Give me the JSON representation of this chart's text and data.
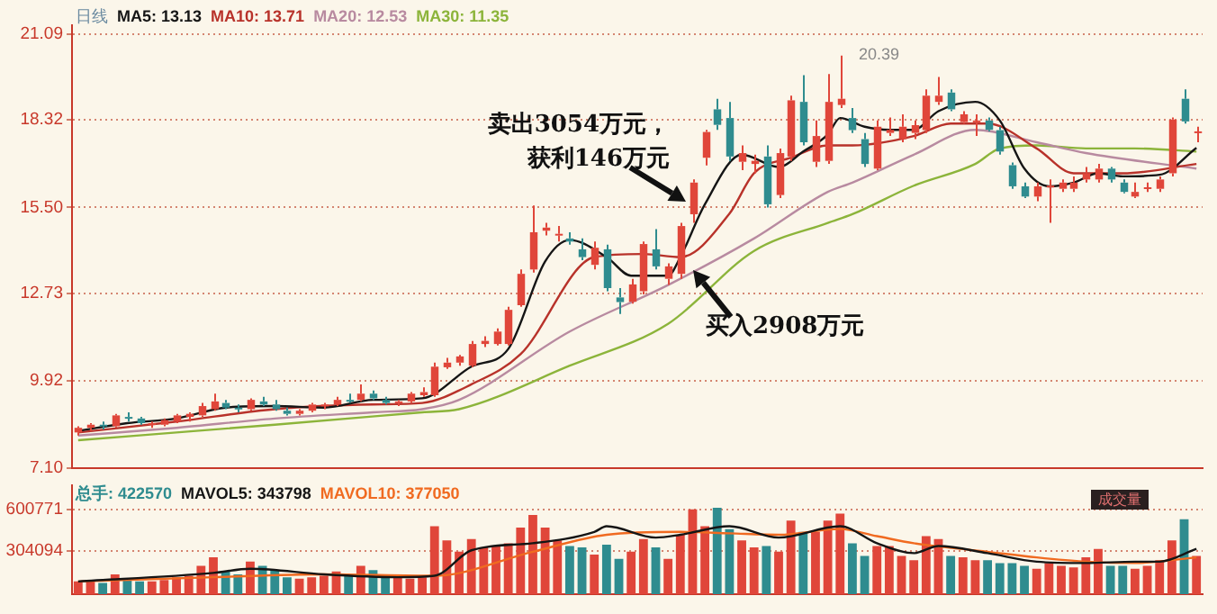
{
  "chart_data": [
    {
      "type": "candlestick",
      "title": "日线",
      "legend": "top left",
      "grid": "y",
      "tick_labels": "y",
      "categories": [
        null,
        null,
        null,
        null,
        null,
        null,
        null,
        null,
        null,
        null,
        null,
        null,
        null,
        null,
        null,
        null,
        null,
        null,
        null,
        null,
        null,
        null,
        null,
        null,
        null,
        null,
        null,
        null,
        null,
        null,
        null,
        null,
        null,
        null,
        null,
        null,
        null,
        null,
        null,
        null,
        null,
        null,
        null,
        null,
        null,
        null,
        null,
        null,
        null,
        null,
        null,
        null,
        null,
        null,
        null,
        null,
        null,
        null,
        null,
        null,
        null,
        null,
        null,
        null,
        null,
        null,
        null,
        null,
        null,
        null,
        null,
        null,
        null,
        null,
        null,
        null,
        null,
        null,
        null,
        null,
        null,
        null,
        null,
        null,
        null,
        null,
        null,
        null,
        null,
        null,
        null,
        null
      ],
      "ylim": [
        7.1,
        21.37
      ],
      "yticks": [
        {
          "value": 7.1,
          "label": "7.10"
        },
        {
          "value": 9.92,
          "label": "9.92"
        },
        {
          "value": 12.73,
          "label": "12.73"
        },
        {
          "value": 15.5,
          "label": "15.50"
        },
        {
          "value": 18.32,
          "label": "18.32"
        },
        {
          "value": 21.09,
          "label": "21.09"
        }
      ],
      "ohlc": [
        [
          8.25,
          8.45,
          8.15,
          8.4
        ],
        [
          8.4,
          8.55,
          8.3,
          8.5
        ],
        [
          8.5,
          8.6,
          8.35,
          8.45
        ],
        [
          8.45,
          8.85,
          8.4,
          8.8
        ],
        [
          8.75,
          8.9,
          8.6,
          8.7
        ],
        [
          8.7,
          8.75,
          8.5,
          8.55
        ],
        [
          8.5,
          8.6,
          8.4,
          8.55
        ],
        [
          8.5,
          8.7,
          8.45,
          8.65
        ],
        [
          8.6,
          8.85,
          8.55,
          8.8
        ],
        [
          8.75,
          8.9,
          8.6,
          8.85
        ],
        [
          8.8,
          9.2,
          8.75,
          9.1
        ],
        [
          9.0,
          9.5,
          8.95,
          9.25
        ],
        [
          9.2,
          9.3,
          9.0,
          9.05
        ],
        [
          9.05,
          9.15,
          8.9,
          9.0
        ],
        [
          9.0,
          9.35,
          8.95,
          9.3
        ],
        [
          9.25,
          9.4,
          9.1,
          9.15
        ],
        [
          9.15,
          9.3,
          8.95,
          9.0
        ],
        [
          8.95,
          9.05,
          8.8,
          8.85
        ],
        [
          8.85,
          9.0,
          8.8,
          8.95
        ],
        [
          8.95,
          9.2,
          8.9,
          9.15
        ],
        [
          9.1,
          9.2,
          9.0,
          9.15
        ],
        [
          9.15,
          9.4,
          9.1,
          9.3
        ],
        [
          9.3,
          9.5,
          9.2,
          9.25
        ],
        [
          9.3,
          9.8,
          9.25,
          9.5
        ],
        [
          9.5,
          9.6,
          9.3,
          9.35
        ],
        [
          9.3,
          9.4,
          9.15,
          9.2
        ],
        [
          9.2,
          9.3,
          9.1,
          9.25
        ],
        [
          9.25,
          9.55,
          9.2,
          9.5
        ],
        [
          9.45,
          9.7,
          9.4,
          9.55
        ],
        [
          9.45,
          10.5,
          9.4,
          10.37
        ],
        [
          10.35,
          10.65,
          10.3,
          10.5
        ],
        [
          10.5,
          10.75,
          10.4,
          10.7
        ],
        [
          10.4,
          11.2,
          10.35,
          11.1
        ],
        [
          11.1,
          11.35,
          11.0,
          11.2
        ],
        [
          11.1,
          11.6,
          11.05,
          11.5
        ],
        [
          11.1,
          12.3,
          11.05,
          12.2
        ],
        [
          12.35,
          13.5,
          12.3,
          13.36
        ],
        [
          13.5,
          15.56,
          13.4,
          14.7
        ],
        [
          14.75,
          15.0,
          14.6,
          14.85
        ],
        [
          14.6,
          14.9,
          14.4,
          14.65
        ],
        [
          14.5,
          14.7,
          14.3,
          14.4
        ],
        [
          14.15,
          14.5,
          13.8,
          13.9
        ],
        [
          13.65,
          14.4,
          13.5,
          14.2
        ],
        [
          14.15,
          14.3,
          12.8,
          12.9
        ],
        [
          12.6,
          12.9,
          12.07,
          12.45
        ],
        [
          12.46,
          13.2,
          12.4,
          13.02
        ],
        [
          12.8,
          14.4,
          12.7,
          14.32
        ],
        [
          14.15,
          14.8,
          13.5,
          13.6
        ],
        [
          13.2,
          13.7,
          13.0,
          13.6
        ],
        [
          13.36,
          15.0,
          13.2,
          14.9
        ],
        [
          15.28,
          16.4,
          15.0,
          16.3
        ],
        [
          17.1,
          18.0,
          16.85,
          17.93
        ],
        [
          18.66,
          19.0,
          18.0,
          18.16
        ],
        [
          18.38,
          18.9,
          17.0,
          17.14
        ],
        [
          16.97,
          17.5,
          16.7,
          17.25
        ],
        [
          16.9,
          17.2,
          16.6,
          17.0
        ],
        [
          17.14,
          17.5,
          15.5,
          15.6
        ],
        [
          15.9,
          17.4,
          15.8,
          17.25
        ],
        [
          17.14,
          19.1,
          17.0,
          18.95
        ],
        [
          18.9,
          19.76,
          17.5,
          17.6
        ],
        [
          16.97,
          18.3,
          16.8,
          17.8
        ],
        [
          17.0,
          19.8,
          16.9,
          18.9
        ],
        [
          18.8,
          20.39,
          18.7,
          19.0
        ],
        [
          18.38,
          18.7,
          17.9,
          17.99
        ],
        [
          17.7,
          17.9,
          16.8,
          16.9
        ],
        [
          16.75,
          18.3,
          16.7,
          18.1
        ],
        [
          17.9,
          18.4,
          17.8,
          18.0
        ],
        [
          17.7,
          18.5,
          17.6,
          18.1
        ],
        [
          17.9,
          18.3,
          17.7,
          18.15
        ],
        [
          17.99,
          19.3,
          17.9,
          19.1
        ],
        [
          18.9,
          19.7,
          18.8,
          19.1
        ],
        [
          19.2,
          19.3,
          18.6,
          18.66
        ],
        [
          18.25,
          18.6,
          18.2,
          18.5
        ],
        [
          18.3,
          18.5,
          17.8,
          18.3
        ],
        [
          18.3,
          18.4,
          17.95,
          18.0
        ],
        [
          17.99,
          18.1,
          17.2,
          17.3
        ],
        [
          16.86,
          16.95,
          16.1,
          16.18
        ],
        [
          16.18,
          16.3,
          15.8,
          15.85
        ],
        [
          15.85,
          16.3,
          15.7,
          16.18
        ],
        [
          16.2,
          16.4,
          15.0,
          16.2
        ],
        [
          16.1,
          16.4,
          16.0,
          16.3
        ],
        [
          16.1,
          16.5,
          16.0,
          16.3
        ],
        [
          16.4,
          16.8,
          16.3,
          16.6
        ],
        [
          16.4,
          16.9,
          16.3,
          16.75
        ],
        [
          16.75,
          16.8,
          16.3,
          16.4
        ],
        [
          16.3,
          16.4,
          15.95,
          16.0
        ],
        [
          15.85,
          16.3,
          15.8,
          16.0
        ],
        [
          16.1,
          16.3,
          16.0,
          16.15
        ],
        [
          16.1,
          16.5,
          16.0,
          16.4
        ],
        [
          16.6,
          18.4,
          16.5,
          18.33
        ],
        [
          19.0,
          19.3,
          18.2,
          18.27
        ],
        [
          17.93,
          18.1,
          17.6,
          17.95
        ]
      ],
      "colors": [
        "#e0463a",
        "#e0463a",
        "#2f8c8f",
        "#e0463a",
        "#2f8c8f",
        "#2f8c8f",
        "#e0463a",
        "#e0463a",
        "#e0463a",
        "#e0463a",
        "#e0463a",
        "#e0463a",
        "#2f8c8f",
        "#2f8c8f",
        "#e0463a",
        "#2f8c8f",
        "#2f8c8f",
        "#2f8c8f",
        "#e0463a",
        "#e0463a",
        "#e0463a",
        "#e0463a",
        "#2f8c8f",
        "#e0463a",
        "#2f8c8f",
        "#2f8c8f",
        "#e0463a",
        "#e0463a",
        "#e0463a",
        "#e0463a",
        "#e0463a",
        "#e0463a",
        "#e0463a",
        "#e0463a",
        "#e0463a",
        "#e0463a",
        "#e0463a",
        "#e0463a",
        "#e0463a",
        "#e0463a",
        "#2f8c8f",
        "#2f8c8f",
        "#e0463a",
        "#2f8c8f",
        "#2f8c8f",
        "#e0463a",
        "#e0463a",
        "#2f8c8f",
        "#e0463a",
        "#e0463a",
        "#e0463a",
        "#e0463a",
        "#2f8c8f",
        "#2f8c8f",
        "#e0463a",
        "#e0463a",
        "#2f8c8f",
        "#e0463a",
        "#e0463a",
        "#2f8c8f",
        "#e0463a",
        "#e0463a",
        "#e0463a",
        "#2f8c8f",
        "#2f8c8f",
        "#e0463a",
        "#e0463a",
        "#e0463a",
        "#e0463a",
        "#e0463a",
        "#e0463a",
        "#2f8c8f",
        "#e0463a",
        "#e0463a",
        "#2f8c8f",
        "#2f8c8f",
        "#2f8c8f",
        "#2f8c8f",
        "#e0463a",
        "#e0463a",
        "#e0463a",
        "#e0463a",
        "#e0463a",
        "#e0463a",
        "#2f8c8f",
        "#2f8c8f",
        "#e0463a",
        "#e0463a",
        "#e0463a",
        "#e0463a",
        "#2f8c8f",
        "#e0463a"
      ],
      "series": [
        {
          "type": "line",
          "name": "MA5: 13.13",
          "color": "#151515",
          "values": [
            8.3,
            null,
            null,
            null,
            8.55,
            null,
            null,
            null,
            8.7,
            null,
            null,
            null,
            9.05,
            null,
            null,
            null,
            9.1,
            null,
            null,
            null,
            9.05,
            null,
            null,
            null,
            9.3,
            null,
            null,
            null,
            9.35,
            null,
            null,
            null,
            10.37,
            null,
            null,
            10.94,
            null,
            null,
            13.76,
            null,
            14.45,
            null,
            null,
            13.9,
            null,
            13.3,
            null,
            null,
            13.3,
            13.9,
            null,
            15.6,
            null,
            null,
            17.2,
            null,
            null,
            16.8,
            null,
            17.3,
            null,
            17.85,
            18.38,
            null,
            18.1,
            null,
            18.0,
            null,
            18.0,
            null,
            18.6,
            null,
            null,
            18.9,
            null,
            18.3,
            null,
            16.75,
            null,
            16.18,
            null,
            16.3,
            null,
            16.6,
            null,
            16.5,
            null,
            null,
            16.55,
            null,
            null,
            17.42
          ]
        },
        {
          "type": "line",
          "name": "MA10: 13.71",
          "color": "#b8322a",
          "values": [
            8.25,
            null,
            null,
            null,
            null,
            null,
            null,
            null,
            8.6,
            null,
            null,
            null,
            null,
            null,
            null,
            null,
            9.0,
            null,
            null,
            null,
            null,
            null,
            null,
            null,
            9.15,
            null,
            null,
            null,
            9.2,
            null,
            null,
            null,
            9.8,
            null,
            null,
            null,
            10.77,
            null,
            null,
            null,
            null,
            null,
            13.9,
            null,
            null,
            null,
            14.0,
            null,
            null,
            13.9,
            null,
            null,
            null,
            15.3,
            null,
            16.6,
            null,
            null,
            17.1,
            null,
            null,
            17.5,
            null,
            17.5,
            null,
            null,
            null,
            null,
            17.8,
            null,
            null,
            18.2,
            null,
            null,
            18.2,
            null,
            null,
            null,
            17.4,
            null,
            null,
            16.6,
            null,
            null,
            null,
            16.6,
            null,
            null,
            null,
            null,
            null,
            16.9
          ]
        },
        {
          "type": "line",
          "name": "MA20: 12.53",
          "color": "#b88aa0",
          "values": [
            8.15,
            null,
            null,
            null,
            null,
            null,
            null,
            null,
            8.4,
            null,
            null,
            null,
            null,
            null,
            null,
            null,
            8.7,
            null,
            null,
            null,
            null,
            null,
            null,
            null,
            8.9,
            null,
            null,
            null,
            9.0,
            null,
            null,
            9.3,
            null,
            null,
            null,
            null,
            null,
            null,
            null,
            null,
            11.5,
            null,
            null,
            null,
            null,
            null,
            null,
            null,
            13.0,
            null,
            null,
            null,
            null,
            null,
            null,
            14.5,
            null,
            null,
            null,
            null,
            null,
            16.0,
            null,
            16.3,
            null,
            null,
            null,
            null,
            17.2,
            null,
            null,
            null,
            null,
            18.0,
            null,
            null,
            null,
            null,
            17.6,
            null,
            null,
            null,
            17.25,
            null,
            null,
            null,
            null,
            null,
            null,
            null,
            null,
            16.75
          ]
        },
        {
          "type": "line",
          "name": "MA30: 11.35",
          "color": "#8cb43a",
          "values": [
            8.0,
            null,
            null,
            null,
            null,
            null,
            null,
            null,
            null,
            null,
            null,
            null,
            null,
            null,
            null,
            null,
            8.5,
            null,
            null,
            null,
            null,
            null,
            null,
            null,
            null,
            null,
            null,
            null,
            8.9,
            null,
            null,
            9.0,
            null,
            null,
            null,
            null,
            null,
            null,
            null,
            null,
            10.4,
            null,
            null,
            null,
            null,
            null,
            null,
            null,
            11.75,
            null,
            null,
            null,
            null,
            null,
            null,
            14.1,
            null,
            null,
            null,
            null,
            null,
            15.0,
            null,
            15.28,
            null,
            null,
            null,
            null,
            16.2,
            null,
            null,
            null,
            null,
            16.9,
            null,
            17.4,
            null,
            null,
            17.5,
            null,
            null,
            null,
            17.4,
            null,
            null,
            null,
            17.4,
            null,
            null,
            null,
            null,
            17.3
          ]
        }
      ],
      "annotations": [
        "卖出3054万元，获利146万元",
        "买入2908万元",
        "20.39"
      ]
    },
    {
      "type": "bar",
      "legend": "top left",
      "grid": "y",
      "tick_labels": "y",
      "categories": [
        null,
        null,
        null,
        null,
        null,
        null,
        null,
        null,
        null,
        null,
        null,
        null,
        null,
        null,
        null,
        null,
        null,
        null,
        null,
        null,
        null,
        null,
        null,
        null,
        null,
        null,
        null,
        null,
        null,
        null,
        null,
        null,
        null,
        null,
        null,
        null,
        null,
        null,
        null,
        null,
        null,
        null,
        null,
        null,
        null,
        null,
        null,
        null,
        null,
        null,
        null,
        null,
        null,
        null,
        null,
        null,
        null,
        null,
        null,
        null,
        null,
        null,
        null,
        null,
        null,
        null,
        null,
        null,
        null,
        null,
        null,
        null,
        null,
        null,
        null,
        null,
        null,
        null,
        null,
        null,
        null,
        null,
        null,
        null,
        null,
        null,
        null,
        null,
        null,
        null,
        null,
        null
      ],
      "ylim": [
        0,
        767000
      ],
      "yticks": [
        304094,
        600771
      ],
      "series": [
        {
          "type": "bar",
          "name": "总手: 422570",
          "color": "#2f8c8f",
          "colors": [
            "#e0463a",
            "#e0463a",
            "#2f8c8f",
            "#e0463a",
            "#2f8c8f",
            "#2f8c8f",
            "#e0463a",
            "#e0463a",
            "#e0463a",
            "#e0463a",
            "#e0463a",
            "#e0463a",
            "#2f8c8f",
            "#2f8c8f",
            "#e0463a",
            "#2f8c8f",
            "#2f8c8f",
            "#2f8c8f",
            "#e0463a",
            "#e0463a",
            "#e0463a",
            "#e0463a",
            "#2f8c8f",
            "#e0463a",
            "#2f8c8f",
            "#2f8c8f",
            "#e0463a",
            "#e0463a",
            "#e0463a",
            "#e0463a",
            "#e0463a",
            "#e0463a",
            "#e0463a",
            "#e0463a",
            "#e0463a",
            "#e0463a",
            "#e0463a",
            "#e0463a",
            "#e0463a",
            "#e0463a",
            "#2f8c8f",
            "#2f8c8f",
            "#e0463a",
            "#2f8c8f",
            "#2f8c8f",
            "#e0463a",
            "#e0463a",
            "#2f8c8f",
            "#e0463a",
            "#e0463a",
            "#e0463a",
            "#e0463a",
            "#2f8c8f",
            "#2f8c8f",
            "#e0463a",
            "#e0463a",
            "#2f8c8f",
            "#e0463a",
            "#e0463a",
            "#2f8c8f",
            "#e0463a",
            "#e0463a",
            "#e0463a",
            "#2f8c8f",
            "#2f8c8f",
            "#e0463a",
            "#e0463a",
            "#e0463a",
            "#e0463a",
            "#e0463a",
            "#e0463a",
            "#2f8c8f",
            "#e0463a",
            "#e0463a",
            "#2f8c8f",
            "#2f8c8f",
            "#2f8c8f",
            "#2f8c8f",
            "#e0463a",
            "#e0463a",
            "#e0463a",
            "#e0463a",
            "#e0463a",
            "#e0463a",
            "#2f8c8f",
            "#2f8c8f",
            "#e0463a",
            "#e0463a",
            "#e0463a",
            "#e0463a",
            "#2f8c8f",
            "#e0463a"
          ],
          "values": [
            90000,
            100000,
            80000,
            140000,
            110000,
            90000,
            90000,
            100000,
            120000,
            130000,
            200000,
            260000,
            160000,
            140000,
            230000,
            200000,
            170000,
            120000,
            110000,
            120000,
            130000,
            160000,
            140000,
            200000,
            170000,
            140000,
            120000,
            110000,
            120000,
            480000,
            380000,
            300000,
            390000,
            330000,
            340000,
            360000,
            470000,
            560000,
            470000,
            380000,
            340000,
            330000,
            280000,
            350000,
            250000,
            300000,
            390000,
            330000,
            250000,
            420000,
            600000,
            480000,
            610000,
            460000,
            380000,
            330000,
            340000,
            300000,
            520000,
            440000,
            440000,
            520000,
            570000,
            360000,
            270000,
            340000,
            340000,
            270000,
            240000,
            410000,
            390000,
            270000,
            260000,
            240000,
            240000,
            220000,
            220000,
            200000,
            180000,
            220000,
            200000,
            190000,
            260000,
            320000,
            200000,
            200000,
            180000,
            200000,
            240000,
            380000,
            530000,
            270000
          ]
        },
        {
          "type": "line",
          "name": "MAVOL5: 343798",
          "color": "#151515",
          "values": [
            90000,
            null,
            null,
            null,
            null,
            null,
            null,
            null,
            null,
            null,
            null,
            150000,
            null,
            null,
            180000,
            null,
            null,
            null,
            null,
            null,
            140000,
            null,
            null,
            null,
            null,
            null,
            120000,
            null,
            null,
            130000,
            null,
            null,
            310000,
            null,
            null,
            null,
            null,
            360000,
            null,
            null,
            null,
            null,
            440000,
            480000,
            null,
            null,
            null,
            400000,
            null,
            420000,
            null,
            null,
            null,
            480000,
            null,
            null,
            null,
            400000,
            null,
            null,
            null,
            null,
            480000,
            null,
            null,
            360000,
            null,
            null,
            290000,
            null,
            340000,
            null,
            null,
            null,
            290000,
            null,
            null,
            null,
            230000,
            null,
            null,
            null,
            220000,
            null,
            null,
            null,
            230000,
            null,
            230000,
            null,
            null,
            320000
          ]
        },
        {
          "type": "line",
          "name": "MAVOL10: 377050",
          "color": "#f06a20",
          "values": [
            90000,
            null,
            null,
            null,
            null,
            null,
            null,
            null,
            null,
            null,
            null,
            120000,
            null,
            null,
            null,
            null,
            null,
            null,
            null,
            null,
            140000,
            null,
            null,
            null,
            null,
            null,
            null,
            null,
            null,
            130000,
            null,
            null,
            null,
            null,
            null,
            null,
            null,
            300000,
            null,
            null,
            null,
            null,
            null,
            420000,
            null,
            null,
            null,
            null,
            null,
            440000,
            null,
            null,
            null,
            430000,
            null,
            null,
            null,
            420000,
            null,
            null,
            null,
            null,
            460000,
            null,
            null,
            410000,
            null,
            null,
            360000,
            null,
            null,
            null,
            null,
            null,
            300000,
            null,
            null,
            null,
            260000,
            null,
            null,
            null,
            230000,
            null,
            null,
            null,
            220000,
            null,
            null,
            null,
            null,
            260000
          ]
        }
      ],
      "annotations": [
        "成交量"
      ]
    }
  ]
}
